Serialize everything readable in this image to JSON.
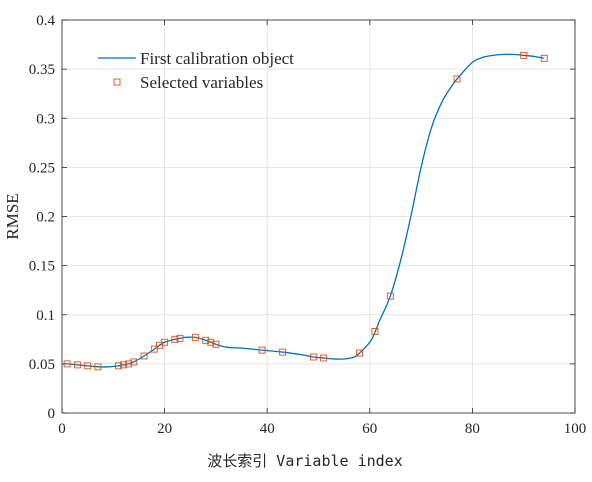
{
  "chart_data": {
    "type": "line",
    "xlabel": "波长索引 Variable index",
    "ylabel": "RMSE",
    "xlim": [
      0,
      100
    ],
    "ylim": [
      0,
      0.4
    ],
    "xticks": [
      0,
      20,
      40,
      60,
      80,
      100
    ],
    "yticks": [
      0,
      0.05,
      0.1,
      0.15,
      0.2,
      0.25,
      0.3,
      0.35,
      0.4
    ],
    "xtick_labels": [
      "0",
      "20",
      "40",
      "60",
      "80",
      "100"
    ],
    "ytick_labels": [
      "0",
      "0.05",
      "0.1",
      "0.15",
      "0.2",
      "0.25",
      "0.3",
      "0.35",
      "0.4"
    ],
    "grid": true,
    "legend_position": "top-left",
    "series": [
      {
        "name": "First calibration object",
        "kind": "line",
        "color": "#0072BD",
        "x": [
          0,
          1,
          3,
          5,
          7,
          9,
          11,
          12,
          13,
          14,
          16,
          18,
          19,
          20,
          22,
          23,
          24,
          26,
          28,
          29,
          30,
          32,
          35,
          39,
          43,
          47,
          49,
          51,
          53,
          55,
          57,
          58,
          60,
          61,
          62,
          64,
          66,
          68,
          70,
          72,
          74,
          76,
          77,
          78,
          80,
          82,
          84,
          86,
          88,
          90,
          92,
          94
        ],
        "y": [
          0.05,
          0.05,
          0.049,
          0.048,
          0.047,
          0.047,
          0.048,
          0.049,
          0.05,
          0.052,
          0.058,
          0.065,
          0.069,
          0.072,
          0.075,
          0.076,
          0.077,
          0.077,
          0.074,
          0.072,
          0.07,
          0.067,
          0.066,
          0.064,
          0.062,
          0.059,
          0.057,
          0.056,
          0.055,
          0.055,
          0.057,
          0.061,
          0.072,
          0.082,
          0.095,
          0.119,
          0.155,
          0.2,
          0.25,
          0.29,
          0.316,
          0.333,
          0.34,
          0.346,
          0.357,
          0.362,
          0.364,
          0.365,
          0.365,
          0.364,
          0.363,
          0.361
        ]
      },
      {
        "name": "Selected variables",
        "kind": "marker",
        "color": "#D95319",
        "x": [
          1,
          3,
          5,
          7,
          11,
          12,
          13,
          14,
          16,
          18,
          19,
          20,
          22,
          23,
          26,
          28,
          29,
          30,
          39,
          43,
          49,
          51,
          58,
          61,
          64,
          77,
          90,
          94
        ],
        "y": [
          0.05,
          0.049,
          0.048,
          0.047,
          0.048,
          0.049,
          0.05,
          0.052,
          0.058,
          0.065,
          0.069,
          0.072,
          0.075,
          0.076,
          0.077,
          0.074,
          0.072,
          0.07,
          0.064,
          0.062,
          0.057,
          0.056,
          0.061,
          0.083,
          0.119,
          0.34,
          0.364,
          0.361
        ]
      }
    ]
  }
}
